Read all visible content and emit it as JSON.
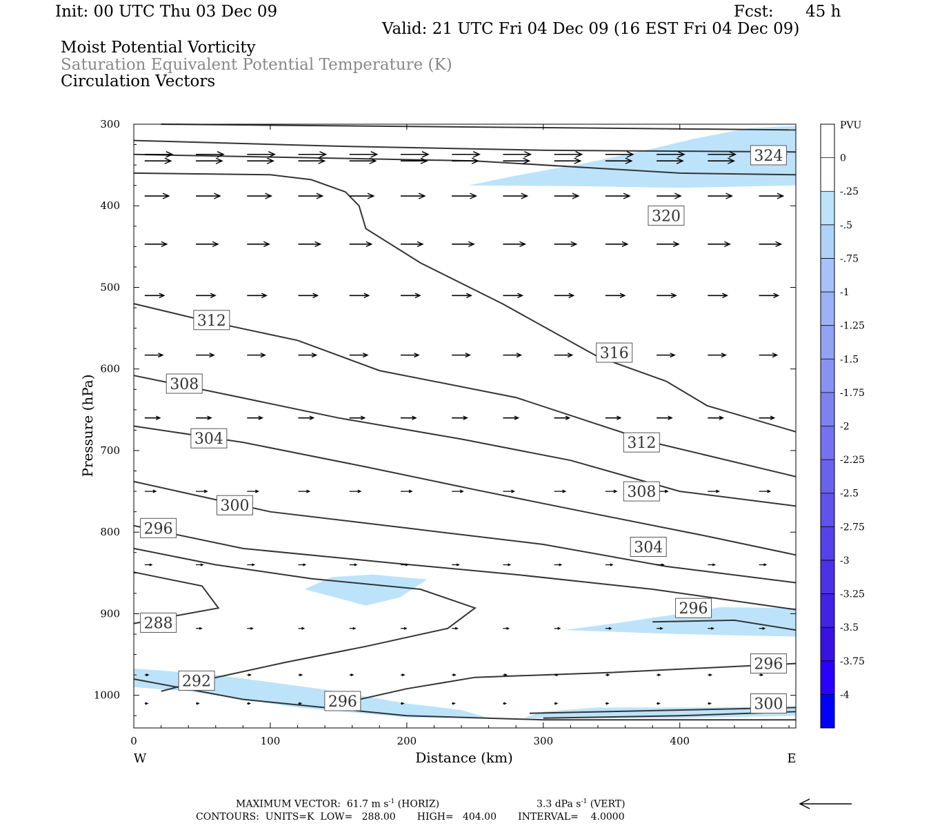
{
  "header": {
    "init": "Init: 00 UTC Thu 03 Dec 09",
    "fcst_label": "Fcst:",
    "fcst_value": "45 h",
    "valid": "Valid: 21 UTC Fri 04 Dec 09 (16 EST Fri 04 Dec 09)",
    "field1": "Moist Potential Vorticity",
    "field2": "Saturation Equivalent Potential Temperature (K)",
    "field3": "Circulation Vectors"
  },
  "footer": {
    "max_vector_label": "MAXIMUM VECTOR:",
    "max_vector_h_value": "61.7",
    "max_vector_h_units": "m s",
    "max_vector_h_note": "(HORIZ)",
    "max_vector_v_value": "3.3",
    "max_vector_v_units": "dPa s",
    "max_vector_v_note": "(VERT)",
    "superscript": "-1",
    "contours_line": "CONTOURS:  UNITS=K  LOW=   288.00       HIGH=   404.00       INTERVAL=    4.0000"
  },
  "chart_data": {
    "type": "contour cross-section",
    "xlabel": "Distance (km)",
    "ylabel": "Pressure (hPa)",
    "xlim": [
      0,
      485
    ],
    "ylim": [
      1040,
      300
    ],
    "x_ticks": [
      0,
      100,
      200,
      300,
      400
    ],
    "y_ticks": [
      300,
      400,
      500,
      600,
      700,
      800,
      900,
      1000
    ],
    "west_label": "W",
    "east_label": "E",
    "legend": {
      "title": "PVU",
      "values": [
        "0",
        "-.25",
        "-.5",
        "-.75",
        "-1",
        "-1.25",
        "-1.5",
        "-1.75",
        "-2",
        "-2.25",
        "-2.5",
        "-2.75",
        "-3",
        "-3.25",
        "-3.5",
        "-3.75",
        "-4"
      ],
      "colors": [
        "#ffffff",
        "#ffffff",
        "#bde3fb",
        "#b0d2fa",
        "#a6c2f8",
        "#9cb2f6",
        "#92a2f4",
        "#8892f2",
        "#7e82f0",
        "#7472ee",
        "#6a62ec",
        "#6052ea",
        "#5642e8",
        "#4c32e6",
        "#4222e4",
        "#3812e2",
        "#2a00ff",
        "#0000ff"
      ]
    },
    "contour_lines": [
      {
        "points": [
          [
            20,
            300
          ],
          [
            485,
            307
          ]
        ]
      },
      {
        "points": [
          [
            0,
            320
          ],
          [
            150,
            327
          ],
          [
            300,
            332
          ],
          [
            485,
            334
          ]
        ]
      },
      {
        "points": [
          [
            0,
            337
          ],
          [
            250,
            345
          ],
          [
            400,
            360
          ],
          [
            485,
            362
          ]
        ]
      },
      {
        "points": [
          [
            0,
            360
          ],
          [
            100,
            362
          ],
          [
            130,
            368
          ],
          [
            155,
            383
          ],
          [
            165,
            400
          ],
          [
            170,
            428
          ],
          [
            210,
            470
          ],
          [
            270,
            520
          ],
          [
            340,
            585
          ],
          [
            390,
            615
          ],
          [
            420,
            645
          ],
          [
            485,
            677
          ]
        ]
      },
      {
        "points": [
          [
            0,
            520
          ],
          [
            50,
            540
          ],
          [
            120,
            565
          ],
          [
            180,
            602
          ],
          [
            280,
            635
          ],
          [
            380,
            690
          ],
          [
            485,
            732
          ]
        ]
      },
      {
        "points": [
          [
            0,
            608
          ],
          [
            70,
            632
          ],
          [
            150,
            660
          ],
          [
            240,
            686
          ],
          [
            320,
            712
          ],
          [
            400,
            750
          ],
          [
            485,
            768
          ]
        ]
      },
      {
        "points": [
          [
            0,
            670
          ],
          [
            80,
            690
          ],
          [
            170,
            720
          ],
          [
            250,
            748
          ],
          [
            330,
            775
          ],
          [
            420,
            805
          ],
          [
            485,
            828
          ]
        ]
      },
      {
        "points": [
          [
            0,
            738
          ],
          [
            100,
            775
          ],
          [
            200,
            795
          ],
          [
            300,
            815
          ],
          [
            390,
            842
          ],
          [
            485,
            862
          ]
        ]
      },
      {
        "points": [
          [
            0,
            792
          ],
          [
            80,
            820
          ],
          [
            190,
            838
          ],
          [
            280,
            852
          ],
          [
            380,
            870
          ],
          [
            485,
            895
          ]
        ]
      },
      {
        "points": [
          [
            0,
            820
          ],
          [
            60,
            840
          ],
          [
            130,
            857
          ],
          [
            210,
            870
          ],
          [
            250,
            893
          ],
          [
            230,
            918
          ],
          [
            170,
            940
          ],
          [
            110,
            960
          ],
          [
            55,
            980
          ],
          [
            20,
            995
          ]
        ]
      },
      {
        "points": [
          [
            0,
            849
          ],
          [
            50,
            866
          ],
          [
            62,
            893
          ],
          [
            0,
            912
          ]
        ]
      },
      {
        "points": [
          [
            0,
            980
          ],
          [
            80,
            1005
          ],
          [
            200,
            1025
          ],
          [
            300,
            1030
          ],
          [
            485,
            1030
          ]
        ]
      },
      {
        "points": [
          [
            160,
            1007
          ],
          [
            200,
            992
          ],
          [
            250,
            978
          ],
          [
            350,
            972
          ],
          [
            485,
            961
          ]
        ]
      },
      {
        "points": [
          [
            300,
            1028
          ],
          [
            400,
            1025
          ],
          [
            485,
            1020
          ]
        ]
      },
      {
        "points": [
          [
            290,
            1022
          ],
          [
            485,
            1015
          ]
        ]
      },
      {
        "points": [
          [
            380,
            910
          ],
          [
            440,
            908
          ],
          [
            485,
            920
          ]
        ]
      }
    ],
    "contour_labels": [
      {
        "text": "324",
        "x": 465,
        "y": 338
      },
      {
        "text": "320",
        "x": 390,
        "y": 412
      },
      {
        "text": "316",
        "x": 352,
        "y": 580
      },
      {
        "text": "312",
        "x": 57,
        "y": 540
      },
      {
        "text": "312",
        "x": 372,
        "y": 690
      },
      {
        "text": "308",
        "x": 37,
        "y": 618
      },
      {
        "text": "308",
        "x": 372,
        "y": 750
      },
      {
        "text": "304",
        "x": 55,
        "y": 685
      },
      {
        "text": "304",
        "x": 377,
        "y": 818
      },
      {
        "text": "300",
        "x": 74,
        "y": 767
      },
      {
        "text": "300",
        "x": 465,
        "y": 1010
      },
      {
        "text": "296",
        "x": 18,
        "y": 795
      },
      {
        "text": "296",
        "x": 410,
        "y": 893
      },
      {
        "text": "296",
        "x": 465,
        "y": 961
      },
      {
        "text": "296",
        "x": 153,
        "y": 1007
      },
      {
        "text": "292",
        "x": 46,
        "y": 982
      },
      {
        "text": "288",
        "x": 18,
        "y": 911
      }
    ],
    "pv_regions": [
      {
        "points": [
          [
            245,
            375
          ],
          [
            280,
            363
          ],
          [
            330,
            348
          ],
          [
            380,
            330
          ],
          [
            410,
            318
          ],
          [
            450,
            305
          ],
          [
            485,
            302
          ],
          [
            485,
            375
          ],
          [
            400,
            378
          ],
          [
            330,
            376
          ]
        ]
      },
      {
        "points": [
          [
            125,
            870
          ],
          [
            145,
            855
          ],
          [
            175,
            852
          ],
          [
            215,
            858
          ],
          [
            195,
            880
          ],
          [
            170,
            890
          ]
        ]
      },
      {
        "points": [
          [
            315,
            920
          ],
          [
            360,
            910
          ],
          [
            400,
            900
          ],
          [
            430,
            892
          ],
          [
            485,
            893
          ],
          [
            485,
            928
          ],
          [
            400,
            925
          ]
        ]
      },
      {
        "points": [
          [
            0,
            967
          ],
          [
            60,
            975
          ],
          [
            140,
            993
          ],
          [
            200,
            1010
          ],
          [
            240,
            1018
          ],
          [
            260,
            1028
          ],
          [
            200,
            1027
          ],
          [
            120,
            1015
          ],
          [
            40,
            995
          ],
          [
            0,
            990
          ]
        ]
      },
      {
        "points": [
          [
            285,
            1028
          ],
          [
            300,
            1020
          ],
          [
            340,
            1015
          ],
          [
            400,
            1015
          ],
          [
            485,
            1014
          ],
          [
            485,
            1025
          ],
          [
            400,
            1028
          ]
        ]
      }
    ],
    "vectors": {
      "rows": [
        {
          "p": 337,
          "len": 40
        },
        {
          "p": 345,
          "len": 38
        },
        {
          "p": 388,
          "len": 35
        },
        {
          "p": 447,
          "len": 32
        },
        {
          "p": 510,
          "len": 28
        },
        {
          "p": 583,
          "len": 26
        },
        {
          "p": 660,
          "len": 22
        },
        {
          "p": 750,
          "len": 16
        },
        {
          "p": 840,
          "len": 10
        },
        {
          "p": 918,
          "len": 8
        },
        {
          "p": 975,
          "len": 5
        },
        {
          "p": 1010,
          "len": 4
        }
      ]
    }
  }
}
